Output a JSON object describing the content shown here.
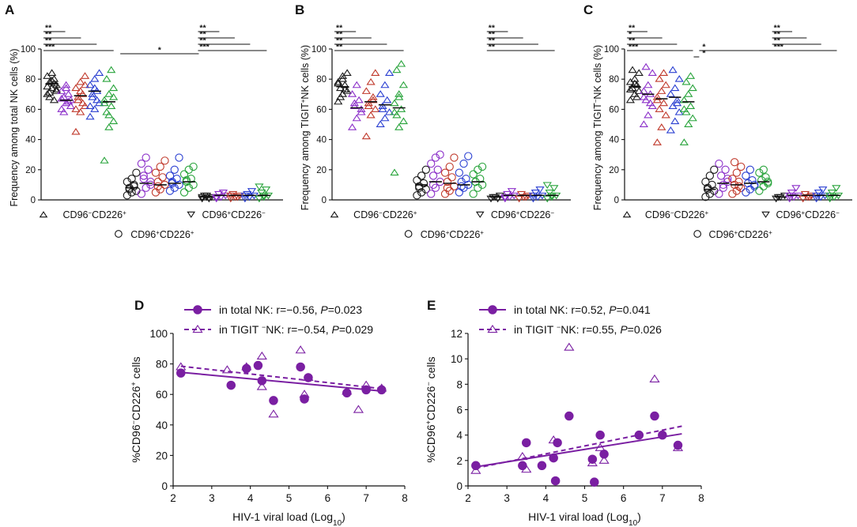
{
  "colors": {
    "black": "#1a1a1a",
    "purple": "#8b2fc9",
    "red": "#c0392b",
    "blue": "#2a3fd1",
    "green": "#27a33a",
    "regression": "#7a1fa2"
  },
  "panels_top": [
    {
      "label": "A",
      "ylabel": "Frequency among total NK cells (%)",
      "ylabel_sup": "",
      "ylabel_tail": "",
      "sig_left": [
        "**",
        "**",
        "**",
        "***"
      ],
      "sig_mid": [
        "*"
      ],
      "sig_right": [
        "**",
        "**",
        "**",
        "***"
      ]
    },
    {
      "label": "B",
      "ylabel": "Frequency among TIGIT",
      "ylabel_sup": "+",
      "ylabel_tail": "NK cells (%)",
      "sig_left": [
        "**",
        "**",
        "**",
        "**"
      ],
      "sig_mid": [],
      "sig_right": [
        "**",
        "**",
        "**",
        "**"
      ]
    },
    {
      "label": "C",
      "ylabel": "Frequency among TIGIT",
      "ylabel_sup": "−",
      "ylabel_tail": "NK cells (%)",
      "sig_left": [
        "**",
        "*",
        "**",
        "***"
      ],
      "sig_mid": [
        "*",
        "*"
      ],
      "sig_right": [
        "**",
        "**",
        "**",
        "***"
      ]
    }
  ],
  "top_axis": {
    "ylim": [
      0,
      100
    ],
    "yticks": [
      "0",
      "20",
      "40",
      "60",
      "80",
      "100"
    ]
  },
  "group_labels": {
    "g1": "CD96",
    "g1_sup1": "−",
    "g1_mid": "CD226",
    "g1_sup2": "+",
    "g2": "CD96",
    "g2_sup1": "+",
    "g2_mid": "CD226",
    "g2_sup2": "+",
    "g3": "CD96",
    "g3_sup1": "+",
    "g3_mid": "CD226",
    "g3_sup2": "−"
  },
  "chart_data": [
    {
      "type": "scatter",
      "panel": "A",
      "title": "",
      "ylabel": "Frequency among total NK cells (%)",
      "ylim": [
        0,
        100
      ],
      "groups": [
        "CD96-CD226+",
        "CD96+CD226+",
        "CD96+CD226-"
      ],
      "series_colors": [
        "black",
        "purple",
        "red",
        "blue",
        "green"
      ],
      "medians": [
        [
          77,
          66,
          69,
          72,
          65
        ],
        [
          8,
          11,
          10,
          11,
          12
        ],
        [
          2,
          3,
          3,
          3,
          3
        ]
      ],
      "points": [
        [
          [
            70,
            74,
            76,
            78,
            80,
            82,
            84,
            72,
            68,
            66,
            75,
            79,
            73,
            71,
            77
          ],
          [
            60,
            64,
            66,
            68,
            70,
            72,
            76,
            62,
            58,
            65,
            67,
            74
          ],
          [
            45,
            58,
            62,
            66,
            70,
            74,
            78,
            82,
            68,
            64,
            60,
            72,
            76
          ],
          [
            55,
            60,
            64,
            68,
            72,
            76,
            80,
            84,
            70,
            66,
            62,
            74
          ],
          [
            26,
            48,
            52,
            58,
            62,
            66,
            70,
            74,
            80,
            86,
            64,
            56,
            68
          ]
        ],
        [
          [
            3,
            5,
            6,
            8,
            10,
            12,
            14,
            18,
            7,
            9
          ],
          [
            4,
            8,
            12,
            16,
            20,
            24,
            28,
            10,
            14
          ],
          [
            5,
            7,
            10,
            12,
            15,
            18,
            22,
            26,
            9
          ],
          [
            6,
            8,
            10,
            12,
            14,
            16,
            20,
            28,
            11
          ],
          [
            5,
            8,
            10,
            12,
            14,
            17,
            20,
            22,
            13
          ]
        ],
        [
          [
            1,
            2,
            2,
            3,
            1,
            2,
            3
          ],
          [
            1,
            2,
            3,
            4,
            5,
            2
          ],
          [
            1,
            2,
            3,
            4,
            2,
            3
          ],
          [
            1,
            2,
            3,
            4,
            6,
            3
          ],
          [
            1,
            2,
            3,
            5,
            7,
            9,
            3
          ]
        ]
      ]
    },
    {
      "type": "scatter",
      "panel": "B",
      "title": "",
      "ylabel": "Frequency among TIGIT+NK cells (%)",
      "ylim": [
        0,
        100
      ],
      "groups": [
        "CD96-CD226+",
        "CD96+CD226+",
        "CD96+CD226-"
      ],
      "series_colors": [
        "black",
        "purple",
        "red",
        "blue",
        "green"
      ],
      "medians": [
        [
          75,
          61,
          65,
          63,
          61
        ],
        [
          10,
          12,
          11,
          10,
          12
        ],
        [
          2,
          3,
          3,
          3,
          3
        ]
      ],
      "points": [
        [
          [
            65,
            70,
            72,
            74,
            76,
            78,
            80,
            84,
            68,
            73,
            77,
            82
          ],
          [
            48,
            54,
            58,
            62,
            66,
            70,
            76,
            60,
            64
          ],
          [
            42,
            56,
            60,
            64,
            68,
            72,
            78,
            84,
            62,
            66
          ],
          [
            50,
            54,
            58,
            62,
            66,
            70,
            76,
            84,
            60
          ],
          [
            18,
            48,
            52,
            56,
            60,
            64,
            68,
            76,
            86,
            90,
            58,
            70
          ]
        ],
        [
          [
            3,
            5,
            7,
            9,
            11,
            13,
            16,
            20,
            8
          ],
          [
            4,
            8,
            12,
            16,
            20,
            24,
            28,
            30,
            10
          ],
          [
            4,
            6,
            9,
            12,
            15,
            18,
            22,
            28,
            8
          ],
          [
            5,
            8,
            10,
            12,
            14,
            18,
            24,
            29,
            9
          ],
          [
            4,
            8,
            10,
            12,
            14,
            17,
            20,
            22,
            12
          ]
        ],
        [
          [
            1,
            2,
            3,
            2,
            1
          ],
          [
            1,
            2,
            3,
            4,
            6,
            2
          ],
          [
            1,
            2,
            3,
            4,
            2
          ],
          [
            1,
            2,
            3,
            5,
            7,
            3
          ],
          [
            1,
            2,
            3,
            5,
            8,
            10,
            3
          ]
        ]
      ]
    },
    {
      "type": "scatter",
      "panel": "C",
      "title": "",
      "ylabel": "Frequency among TIGIT-NK cells (%)",
      "ylim": [
        0,
        100
      ],
      "groups": [
        "CD96-CD226+",
        "CD96+CD226+",
        "CD96+CD226-"
      ],
      "series_colors": [
        "black",
        "purple",
        "red",
        "blue",
        "green"
      ],
      "medians": [
        [
          75,
          70,
          67,
          68,
          65
        ],
        [
          7,
          11,
          10,
          11,
          12
        ],
        [
          2,
          3,
          3,
          3,
          3
        ]
      ],
      "points": [
        [
          [
            66,
            70,
            72,
            74,
            76,
            78,
            80,
            84,
            86,
            68,
            73,
            77
          ],
          [
            50,
            56,
            62,
            66,
            70,
            72,
            76,
            84,
            88,
            64,
            68
          ],
          [
            38,
            48,
            56,
            60,
            64,
            68,
            72,
            76,
            80,
            84,
            66
          ],
          [
            46,
            52,
            58,
            62,
            66,
            70,
            74,
            80,
            86,
            64
          ],
          [
            38,
            50,
            54,
            58,
            62,
            66,
            70,
            74,
            78,
            82,
            60
          ]
        ],
        [
          [
            2,
            4,
            6,
            8,
            10,
            12,
            16,
            20,
            7
          ],
          [
            4,
            8,
            12,
            16,
            20,
            24,
            10,
            14
          ],
          [
            4,
            6,
            8,
            10,
            12,
            14,
            18,
            22,
            25,
            9
          ],
          [
            5,
            7,
            9,
            11,
            13,
            16,
            20,
            10
          ],
          [
            6,
            9,
            11,
            13,
            15,
            18,
            20,
            12
          ]
        ],
        [
          [
            1,
            2,
            3,
            2
          ],
          [
            1,
            2,
            3,
            5,
            8,
            3
          ],
          [
            1,
            2,
            3,
            4,
            2
          ],
          [
            1,
            2,
            3,
            5,
            7,
            3
          ],
          [
            1,
            2,
            3,
            5,
            8,
            3
          ]
        ]
      ]
    },
    {
      "type": "scatter",
      "panel": "D",
      "title": "",
      "xlabel": "HIV-1 viral load (Log",
      "xlabel_sub": "10",
      "xlabel_tail": ")",
      "ylabel": "%CD96",
      "ylabel_sup1": "−",
      "ylabel_mid": "CD226",
      "ylabel_sup2": "+",
      "ylabel_tail": " cells",
      "xlim": [
        2,
        8
      ],
      "ylim": [
        0,
        100
      ],
      "xticks": [
        "2",
        "3",
        "4",
        "5",
        "6",
        "7",
        "8"
      ],
      "yticks": [
        "0",
        "20",
        "40",
        "60",
        "80",
        "100"
      ],
      "legend": [
        {
          "prefix": "in total NK: ",
          "stat": "r=−0.56, ",
          "p": "P",
          "pval": "=0.023"
        },
        {
          "prefix": "in TIGIT ",
          "sup": "−",
          "prefix2": "NK: ",
          "stat": "r=−0.54, ",
          "p": "P",
          "pval": "=0.029"
        }
      ],
      "series": [
        {
          "name": "in total NK",
          "marker": "filled-circle",
          "x": [
            2.2,
            3.5,
            3.9,
            4.2,
            4.3,
            4.6,
            5.3,
            5.4,
            5.5,
            6.5,
            7.0,
            7.4
          ],
          "y": [
            74,
            66,
            77,
            79,
            69,
            56,
            78,
            57,
            71,
            61,
            63,
            63
          ],
          "fit": [
            [
              2.2,
              74.5
            ],
            [
              7.5,
              62.0
            ]
          ]
        },
        {
          "name": "in TIGIT- NK",
          "marker": "open-triangle",
          "x": [
            2.2,
            3.4,
            3.9,
            4.3,
            4.3,
            4.6,
            5.3,
            5.4,
            5.5,
            6.5,
            6.8,
            7.0,
            7.4
          ],
          "y": [
            78,
            76,
            78,
            85,
            65,
            47,
            89,
            60,
            71,
            62,
            50,
            66,
            64
          ],
          "fit": [
            [
              2.2,
              78.5
            ],
            [
              7.5,
              63.5
            ]
          ]
        }
      ]
    },
    {
      "type": "scatter",
      "panel": "E",
      "title": "",
      "xlabel": "HIV-1 viral load (Log",
      "xlabel_sub": "10",
      "xlabel_tail": ")",
      "ylabel": "%CD96",
      "ylabel_sup1": "+",
      "ylabel_mid": "CD226",
      "ylabel_sup2": "−",
      "ylabel_tail": " cells",
      "xlim": [
        2,
        8
      ],
      "ylim": [
        0,
        12
      ],
      "xticks": [
        "2",
        "3",
        "4",
        "5",
        "6",
        "7",
        "8"
      ],
      "yticks": [
        "0",
        "2",
        "4",
        "6",
        "8",
        "10",
        "12"
      ],
      "legend": [
        {
          "prefix": "in total NK: ",
          "stat": "r=0.52, ",
          "p": "P",
          "pval": "=0.041"
        },
        {
          "prefix": "in TIGIT ",
          "sup": "−",
          "prefix2": "NK: ",
          "stat": "r=0.55, ",
          "p": "P",
          "pval": "=0.026"
        }
      ],
      "series": [
        {
          "name": "in total NK",
          "marker": "filled-circle",
          "x": [
            2.2,
            3.4,
            3.5,
            3.9,
            4.2,
            4.25,
            4.3,
            4.6,
            5.2,
            5.25,
            5.4,
            5.5,
            6.4,
            6.8,
            7.0,
            7.4
          ],
          "y": [
            1.6,
            1.6,
            3.4,
            1.6,
            2.2,
            0.4,
            3.4,
            5.5,
            2.1,
            0.3,
            4.0,
            2.5,
            4.0,
            5.5,
            4.0,
            3.2
          ],
          "fit": [
            [
              2.2,
              1.5
            ],
            [
              7.5,
              4.1
            ]
          ]
        },
        {
          "name": "in TIGIT- NK",
          "marker": "open-triangle",
          "x": [
            2.2,
            3.4,
            3.5,
            4.2,
            4.6,
            5.2,
            5.4,
            5.5,
            6.8,
            7.4
          ],
          "y": [
            1.2,
            2.3,
            1.3,
            3.6,
            10.9,
            1.8,
            3.0,
            2.0,
            8.4,
            3.0
          ],
          "fit": [
            [
              2.2,
              1.4
            ],
            [
              7.5,
              4.7
            ]
          ]
        }
      ]
    }
  ]
}
